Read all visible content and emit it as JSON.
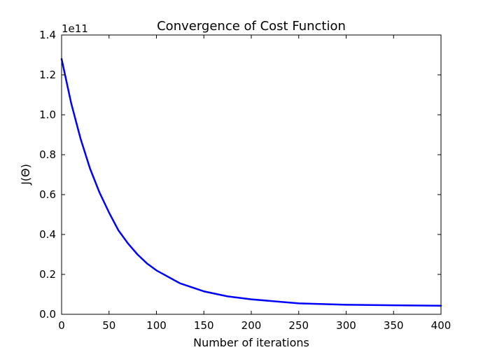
{
  "chart_data": {
    "type": "line",
    "title": "Convergence of Cost Function",
    "xlabel": "Number of iterations",
    "ylabel": "J(Θ)",
    "offset_text": "1e11",
    "xlim": [
      0,
      400
    ],
    "ylim": [
      0.0,
      1.4
    ],
    "x_ticks": [
      0,
      50,
      100,
      150,
      200,
      250,
      300,
      350,
      400
    ],
    "x_tick_labels": [
      "0",
      "50",
      "100",
      "150",
      "200",
      "250",
      "300",
      "350",
      "400"
    ],
    "y_ticks": [
      0.0,
      0.2,
      0.4,
      0.6,
      0.8,
      1.0,
      1.2,
      1.4
    ],
    "y_tick_labels": [
      "0.0",
      "0.2",
      "0.4",
      "0.6",
      "0.8",
      "1.0",
      "1.2",
      "1.4"
    ],
    "grid": false,
    "series": [
      {
        "color": "#0000ff",
        "x": [
          0,
          10,
          20,
          30,
          40,
          50,
          60,
          70,
          80,
          90,
          100,
          125,
          150,
          175,
          200,
          250,
          300,
          350,
          400
        ],
        "values": [
          1.28,
          1.06,
          0.88,
          0.73,
          0.61,
          0.51,
          0.42,
          0.355,
          0.3,
          0.255,
          0.22,
          0.155,
          0.115,
          0.09,
          0.075,
          0.055,
          0.048,
          0.045,
          0.043
        ]
      }
    ]
  }
}
